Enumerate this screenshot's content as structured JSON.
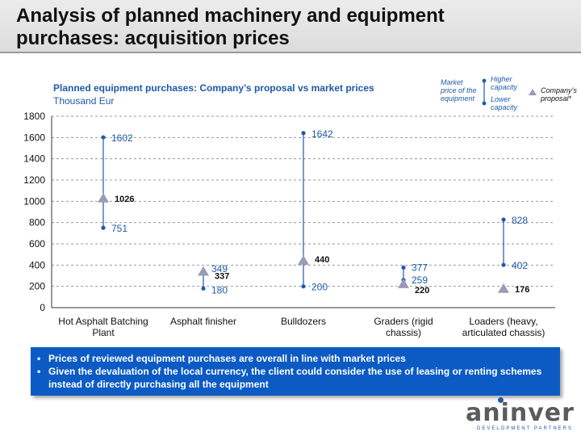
{
  "header": {
    "title_line1": "Analysis of planned machinery and equipment",
    "title_line2": "purchases: acquisition prices"
  },
  "legend": {
    "market_label": [
      "Market",
      "price of the",
      "equipment"
    ],
    "higher_label": [
      "Higher",
      "capacity"
    ],
    "lower_label": [
      "Lower",
      "capacity"
    ],
    "proposal_label": [
      "Company’s",
      "proposal*"
    ]
  },
  "callout": {
    "bullets": [
      "Prices of reviewed equipment purchases are overall in line with market prices",
      "Given the devaluation of the local currency, the client could consider the use of leasing or renting schemes instead of directly purchasing all the equipment"
    ]
  },
  "logo": {
    "name": "aninver",
    "tagline": "DEVELOPMENT PARTNERS"
  },
  "colors": {
    "market": "#1f5aa8",
    "proposal": "#9a9bb8",
    "callout_bg": "#0c5bc4",
    "grid": "#9a9a9a"
  },
  "chart_data": {
    "type": "range",
    "title": "Planned equipment purchases: Company’s proposal vs market prices",
    "subtitle": "Thousand Eur",
    "ylim": [
      0,
      1800
    ],
    "yticks": [
      0,
      200,
      400,
      600,
      800,
      1000,
      1200,
      1400,
      1600,
      1800
    ],
    "grid": true,
    "categories": [
      [
        "Hot Asphalt Batching",
        "Plant"
      ],
      [
        "Asphalt finisher"
      ],
      [
        "Bulldozers"
      ],
      [
        "Graders (rigid",
        "chassis)"
      ],
      [
        "Loaders (heavy,",
        "articulated chassis)"
      ]
    ],
    "series": [
      {
        "name": "Higher capacity",
        "values": [
          1602,
          349,
          1642,
          377,
          828
        ]
      },
      {
        "name": "Lower capacity",
        "values": [
          751,
          180,
          200,
          259,
          402
        ]
      },
      {
        "name": "Company’s proposal*",
        "values": [
          1026,
          337,
          440,
          220,
          176
        ]
      }
    ]
  }
}
